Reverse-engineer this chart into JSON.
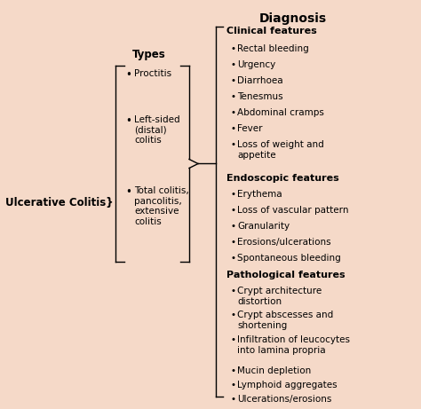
{
  "background_color": "#f5d9c8",
  "fig_w": 4.74,
  "fig_h": 4.61,
  "dpi": 100,
  "title": "Diagnosis",
  "uc_label": "Ulcerative Colitis}",
  "types_label": "Types",
  "types_items": [
    "Proctitis",
    "Left-sided\n(distal)\ncolitis",
    "Total colitis,\npancolitis,\nextensive\ncolitis"
  ],
  "clinical_header": "Clinical features",
  "clinical_items": [
    "Rectal bleeding",
    "Urgency",
    "Diarrhoea",
    "Tenesmus",
    "Abdominal cramps",
    "Fever",
    "Loss of weight and\nappetite"
  ],
  "endoscopic_header": "Endoscopic features",
  "endoscopic_items": [
    "Erythema",
    "Loss of vascular pattern",
    "Granularity",
    "Erosions/ulcerations",
    "Spontaneous bleeding"
  ],
  "pathological_header": "Pathological features",
  "pathological_items": [
    "Crypt architecture\ndistortion",
    "Crypt abscesses and\nshortening",
    "Infiltration of leucocytes\ninto lamina propria",
    "Mucin depletion",
    "Lymphoid aggregates",
    "Ulcerations/erosions"
  ],
  "title_fs": 10,
  "header_fs": 8,
  "text_fs": 7.5,
  "label_fs": 8.5,
  "bullet": "•"
}
